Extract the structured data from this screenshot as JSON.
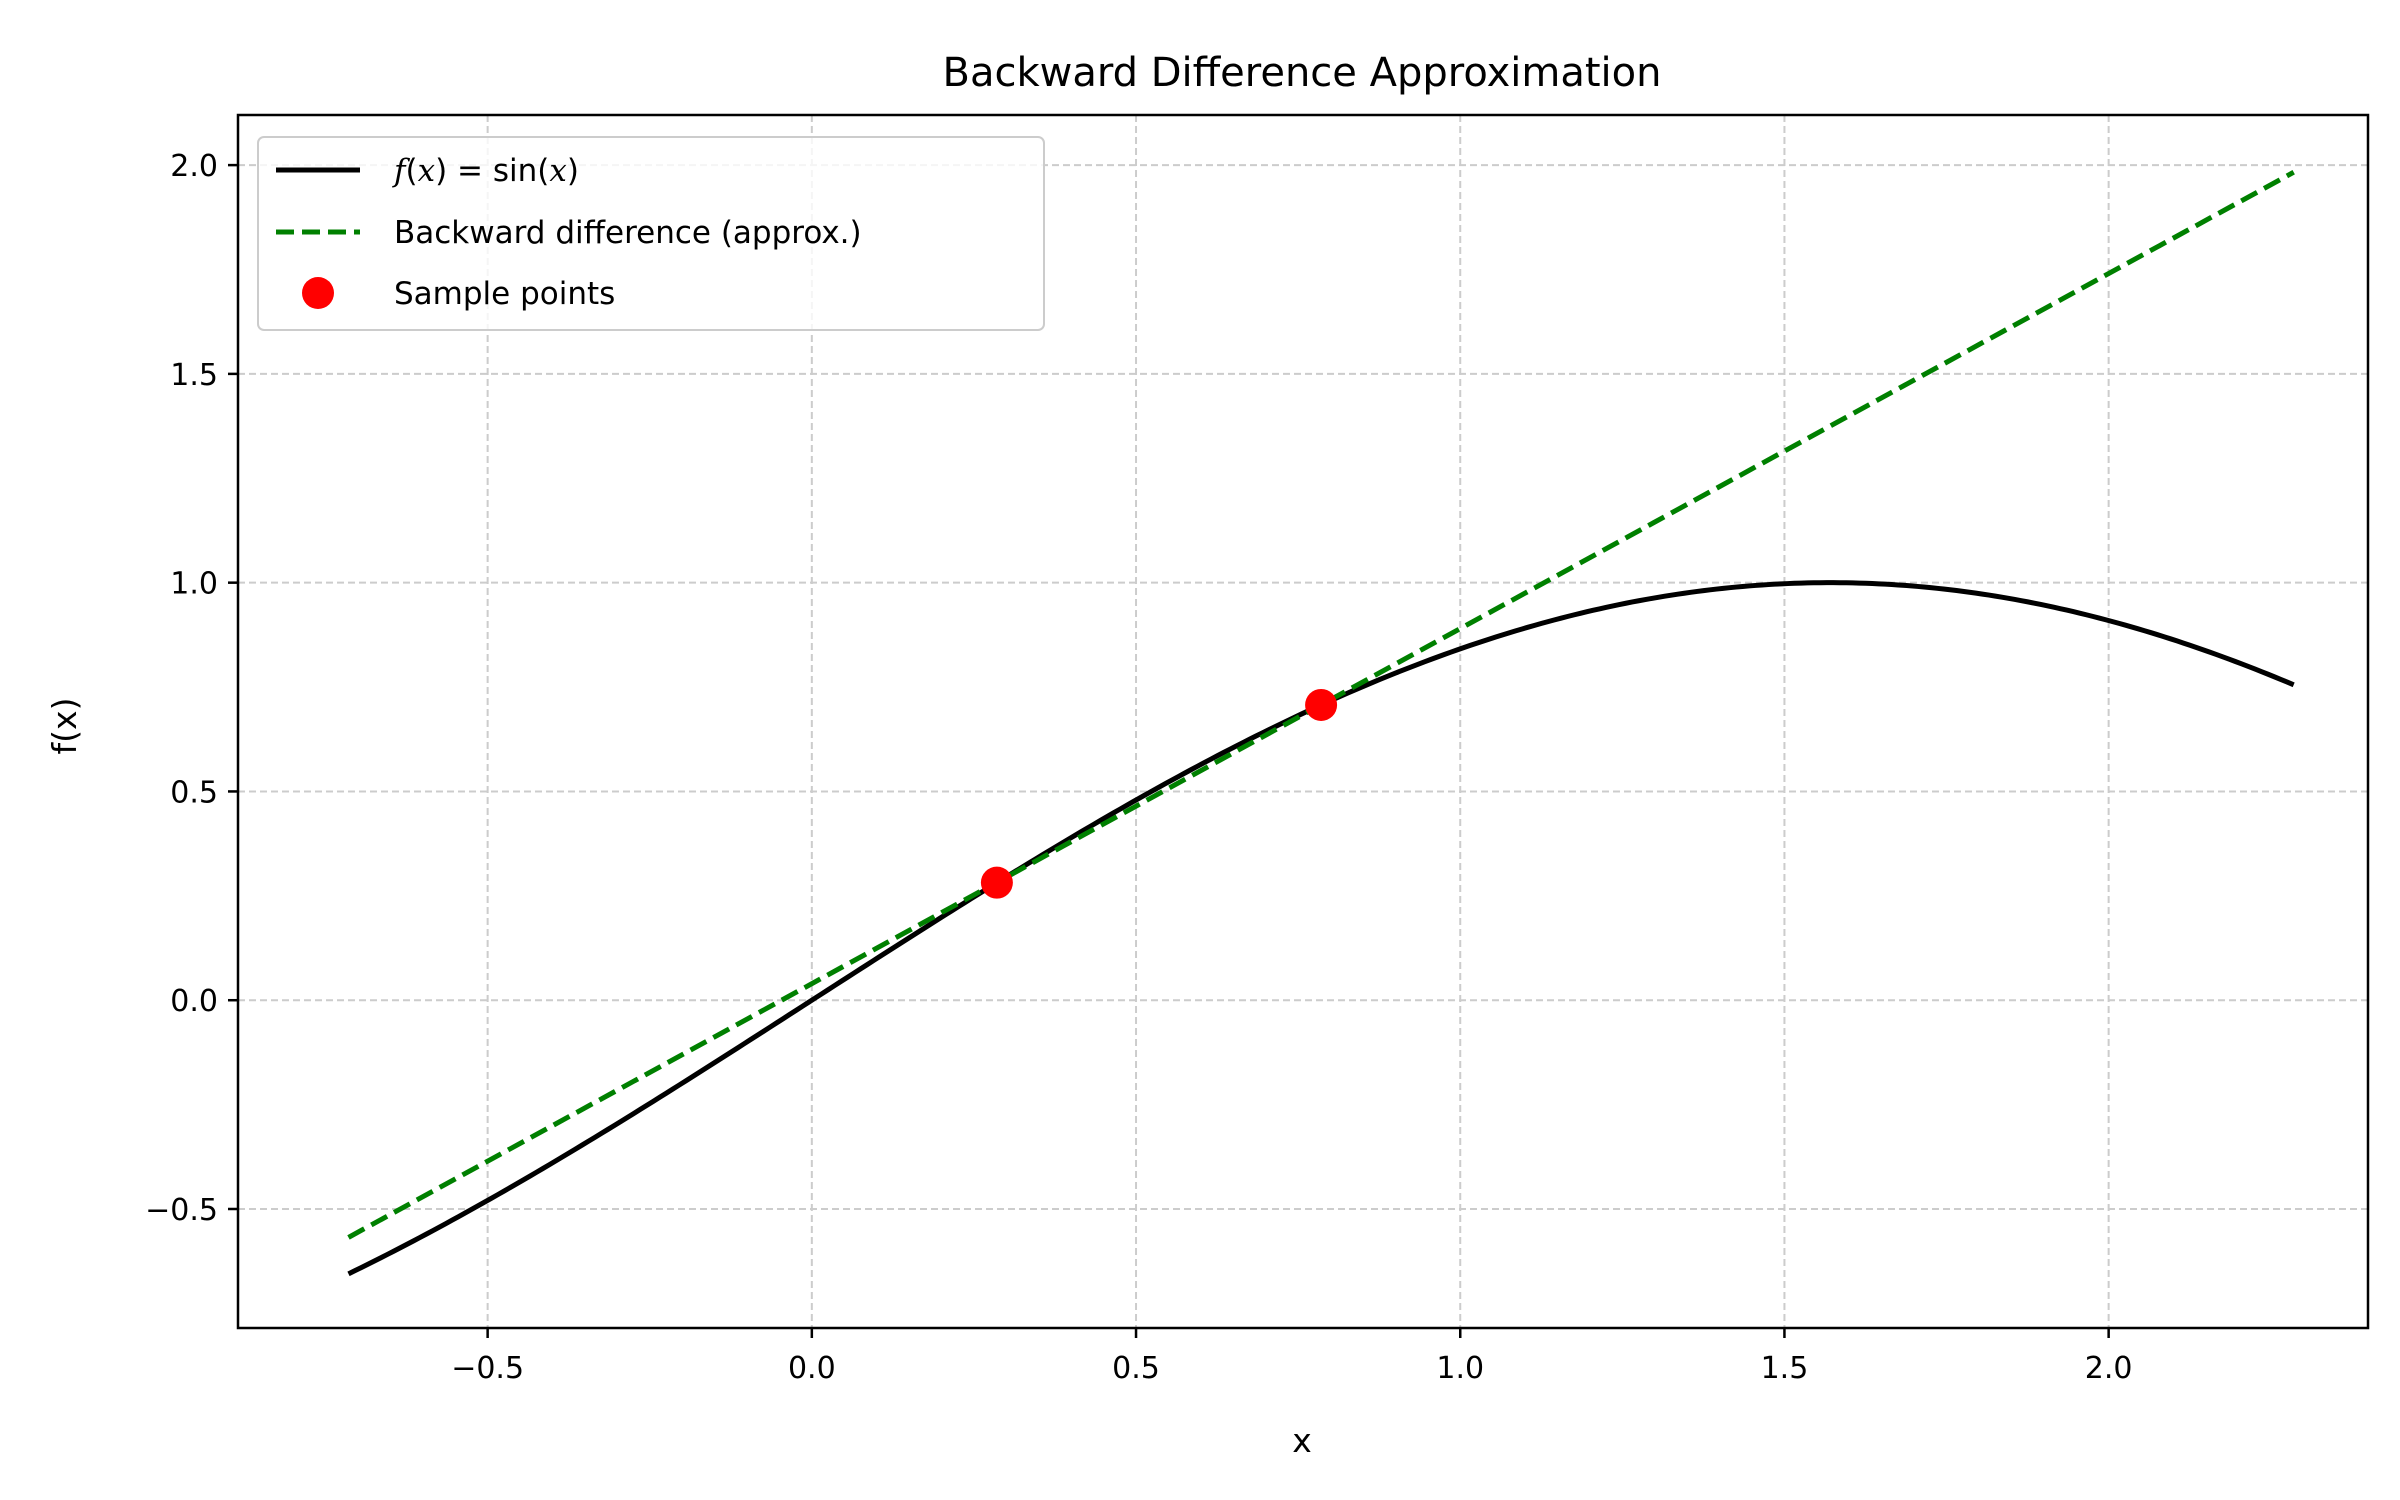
{
  "chart_data": {
    "type": "line",
    "title": "Backward Difference Approximation",
    "xlabel": "x",
    "ylabel": "f(x)",
    "xlim": [
      -0.885,
      2.4
    ],
    "ylim": [
      -0.785,
      2.12
    ],
    "xticks": [
      -0.5,
      0.0,
      0.5,
      1.0,
      1.5,
      2.0
    ],
    "xtick_labels": [
      "−0.5",
      "0.0",
      "0.5",
      "1.0",
      "1.5",
      "2.0"
    ],
    "yticks": [
      -0.5,
      0.0,
      0.5,
      1.0,
      1.5,
      2.0
    ],
    "ytick_labels": [
      "−0.5",
      "0.0",
      "0.5",
      "1.0",
      "1.5",
      "2.0"
    ],
    "grid": true,
    "legend_position": "upper-left",
    "series": [
      {
        "name": "f(x) = sin(x)",
        "kind": "function-line",
        "function": "sin(x)",
        "x_range": [
          -0.7146,
          2.2854
        ],
        "color": "#000000",
        "style": "solid"
      },
      {
        "name": "Backward difference (approx.)",
        "kind": "line",
        "x": [
          -0.7146,
          2.2854
        ],
        "y": [
          -0.568,
          1.983
        ],
        "color": "#008000",
        "style": "dashed"
      },
      {
        "name": "Sample points",
        "kind": "scatter",
        "x": [
          0.2854,
          0.7854
        ],
        "y": [
          0.2815,
          0.7071
        ],
        "color": "#ff0000"
      }
    ]
  },
  "legend": {
    "items": [
      {
        "kind": "math",
        "label_parts": [
          "f",
          "(",
          "x",
          ")",
          " = ",
          "sin",
          "(",
          "x",
          ")"
        ],
        "label_styles": [
          "italic",
          "normal",
          "italic",
          "normal",
          "normal",
          "normal",
          "normal",
          "italic",
          "normal"
        ]
      },
      {
        "kind": "text",
        "label": "Backward difference (approx.)"
      },
      {
        "kind": "text",
        "label": "Sample points"
      }
    ]
  },
  "colors": {
    "function_line": "#000000",
    "approx_line": "#008000",
    "sample_points": "#ff0000",
    "grid": "#cccccc",
    "axes": "#000000",
    "legend_border": "#cccccc"
  }
}
